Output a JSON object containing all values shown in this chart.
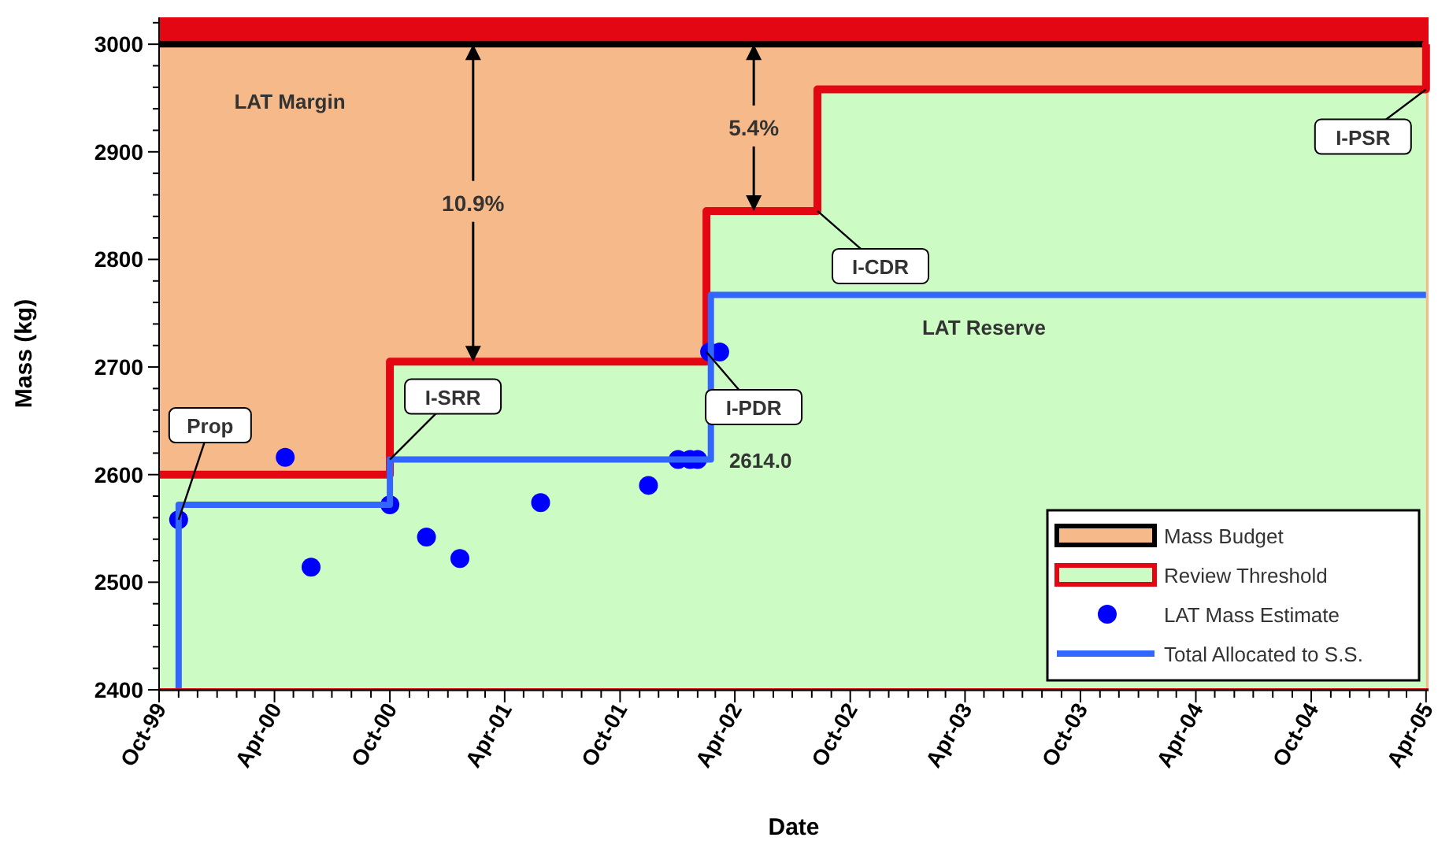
{
  "chart_data": {
    "type": "step",
    "xlabel": "Date",
    "ylabel": "Mass (kg)",
    "xlim": [
      "1999-10-01",
      "2005-04-05"
    ],
    "ylim": [
      2400,
      3025
    ],
    "yticks": [
      2400,
      {
        "value": 2420,
        "label": null
      },
      {
        "value": 2440,
        "label": null
      },
      {
        "value": 2460,
        "label": null
      },
      {
        "value": 2480,
        "label": null
      },
      2500,
      {
        "value": 2520,
        "label": null
      },
      {
        "value": 2540,
        "label": null
      },
      {
        "value": 2560,
        "label": null
      },
      {
        "value": 2580,
        "label": null
      },
      2600,
      {
        "value": 2620,
        "label": null
      },
      {
        "value": 2640,
        "label": null
      },
      {
        "value": 2660,
        "label": null
      },
      {
        "value": 2680,
        "label": null
      },
      2700,
      {
        "value": 2720,
        "label": null
      },
      {
        "value": 2740,
        "label": null
      },
      {
        "value": 2760,
        "label": null
      },
      {
        "value": 2780,
        "label": null
      },
      2800,
      {
        "value": 2820,
        "label": null
      },
      {
        "value": 2840,
        "label": null
      },
      {
        "value": 2860,
        "label": null
      },
      {
        "value": 2880,
        "label": null
      },
      2900,
      {
        "value": 2920,
        "label": null
      },
      {
        "value": 2940,
        "label": null
      },
      {
        "value": 2960,
        "label": null
      },
      {
        "value": 2980,
        "label": null
      },
      3000,
      {
        "value": 3020,
        "label": null
      }
    ],
    "xticks": [
      {
        "value": "1999-10-01",
        "label": "Oct-99"
      },
      {
        "value": "2000-04-01",
        "label": "Apr-00"
      },
      {
        "value": "2000-10-01",
        "label": "Oct-00"
      },
      {
        "value": "2001-04-01",
        "label": "Apr-01"
      },
      {
        "value": "2001-10-01",
        "label": "Oct-01"
      },
      {
        "value": "2002-04-01",
        "label": "Apr-02"
      },
      {
        "value": "2002-10-01",
        "label": "Oct-02"
      },
      {
        "value": "2003-04-01",
        "label": "Apr-03"
      },
      {
        "value": "2003-10-01",
        "label": "Oct-03"
      },
      {
        "value": "2004-04-01",
        "label": "Apr-04"
      },
      {
        "value": "2004-10-01",
        "label": "Oct-04"
      },
      {
        "value": "2005-04-01",
        "label": "Apr-05"
      },
      {
        "value": "1999-11-01",
        "label": null
      },
      {
        "value": "1999-12-01",
        "label": null
      },
      {
        "value": "2000-01-01",
        "label": null
      },
      {
        "value": "2000-02-01",
        "label": null
      },
      {
        "value": "2000-03-01",
        "label": null
      },
      {
        "value": "2000-05-01",
        "label": null
      },
      {
        "value": "2000-06-01",
        "label": null
      },
      {
        "value": "2000-07-01",
        "label": null
      },
      {
        "value": "2000-08-01",
        "label": null
      },
      {
        "value": "2000-09-01",
        "label": null
      },
      {
        "value": "2000-11-01",
        "label": null
      },
      {
        "value": "2000-12-01",
        "label": null
      },
      {
        "value": "2001-01-01",
        "label": null
      },
      {
        "value": "2001-02-01",
        "label": null
      },
      {
        "value": "2001-03-01",
        "label": null
      },
      {
        "value": "2001-05-01",
        "label": null
      },
      {
        "value": "2001-06-01",
        "label": null
      },
      {
        "value": "2001-07-01",
        "label": null
      },
      {
        "value": "2001-08-01",
        "label": null
      },
      {
        "value": "2001-09-01",
        "label": null
      },
      {
        "value": "2001-11-01",
        "label": null
      },
      {
        "value": "2001-12-01",
        "label": null
      },
      {
        "value": "2002-01-01",
        "label": null
      },
      {
        "value": "2002-02-01",
        "label": null
      },
      {
        "value": "2002-03-01",
        "label": null
      },
      {
        "value": "2002-05-01",
        "label": null
      },
      {
        "value": "2002-06-01",
        "label": null
      },
      {
        "value": "2002-07-01",
        "label": null
      },
      {
        "value": "2002-08-01",
        "label": null
      },
      {
        "value": "2002-09-01",
        "label": null
      },
      {
        "value": "2002-11-01",
        "label": null
      },
      {
        "value": "2002-12-01",
        "label": null
      },
      {
        "value": "2003-01-01",
        "label": null
      },
      {
        "value": "2003-02-01",
        "label": null
      },
      {
        "value": "2003-03-01",
        "label": null
      },
      {
        "value": "2003-05-01",
        "label": null
      },
      {
        "value": "2003-06-01",
        "label": null
      },
      {
        "value": "2003-07-01",
        "label": null
      },
      {
        "value": "2003-08-01",
        "label": null
      },
      {
        "value": "2003-09-01",
        "label": null
      },
      {
        "value": "2003-11-01",
        "label": null
      },
      {
        "value": "2003-12-01",
        "label": null
      },
      {
        "value": "2004-01-01",
        "label": null
      },
      {
        "value": "2004-02-01",
        "label": null
      },
      {
        "value": "2004-03-01",
        "label": null
      },
      {
        "value": "2004-05-01",
        "label": null
      },
      {
        "value": "2004-06-01",
        "label": null
      },
      {
        "value": "2004-07-01",
        "label": null
      },
      {
        "value": "2004-08-01",
        "label": null
      },
      {
        "value": "2004-09-01",
        "label": null
      },
      {
        "value": "2004-11-01",
        "label": null
      },
      {
        "value": "2004-12-01",
        "label": null
      },
      {
        "value": "2005-01-01",
        "label": null
      },
      {
        "value": "2005-02-01",
        "label": null
      },
      {
        "value": "2005-03-01",
        "label": null
      }
    ],
    "series": [
      {
        "type": "area",
        "color": "#ccfcc4",
        "x": [
          "1999-10-01",
          "2000-10-01",
          "2000-10-01",
          "2002-02-15",
          "2002-02-15",
          "2002-08-10",
          "2002-08-10",
          "2005-04-01"
        ],
        "values": [
          2600,
          2600,
          2705,
          2705,
          2845,
          2845,
          2958,
          2958
        ]
      },
      {
        "name": "Mass Budget",
        "color": "#000000",
        "x": [
          "1999-10-01",
          "2005-04-05"
        ],
        "values": [
          3000,
          3000
        ]
      },
      {
        "name": "Review Threshold",
        "color": "#e30613",
        "x": [
          "1999-10-01",
          "2000-10-01",
          "2002-02-15",
          "2002-08-10",
          "2005-04-01",
          "2005-04-05"
        ],
        "values": [
          2600,
          2705,
          2845,
          2958,
          3000,
          3000
        ]
      },
      {
        "name": "LAT Mass Estimate",
        "type": "scatter",
        "color": "#0000ff",
        "marker": "circle",
        "x": [
          "1999-11-01",
          "2000-04-18",
          "2000-05-29",
          "2000-10-01",
          "2000-11-28",
          "2001-01-20",
          "2001-05-28",
          "2001-11-15",
          "2002-01-01",
          "2002-01-20",
          "2002-02-01",
          "2002-02-20",
          "2002-03-08"
        ],
        "values": [
          2558,
          2616,
          2514,
          2572,
          2542,
          2522,
          2574,
          2590,
          2614,
          2614,
          2614,
          2714,
          2714
        ]
      },
      {
        "name": "Total Allocated to S.S.",
        "color": "#3366ff",
        "x": [
          "1999-11-01",
          "1999-11-01",
          "2000-10-01",
          "2002-02-22",
          "2005-04-01"
        ],
        "values": [
          2400,
          2572,
          2614,
          2767,
          2767
        ]
      }
    ],
    "bands": [
      {
        "axis": "y",
        "from": 2400,
        "to": 3000,
        "color": "#f5b98a"
      },
      {
        "axis": "y",
        "from": 3000,
        "to": 3025,
        "color": "#e30613"
      }
    ],
    "annotations": [
      {
        "text": "Prop",
        "x": "1999-11-01",
        "y": 2558
      },
      {
        "text": "I-SRR",
        "x": "2000-10-01",
        "y": 2614
      },
      {
        "text": "I-PDR",
        "x": "2002-02-15",
        "y": 2714
      },
      {
        "text": "I-CDR",
        "x": "2002-08-10",
        "y": 2845
      },
      {
        "text": "I-PSR",
        "x": "2005-04-01",
        "y": 2958
      },
      {
        "text": "2614.0",
        "x": "2002-02-01",
        "y": 2614
      },
      "10.9%",
      "5.4%",
      "LAT Margin",
      "LAT Reserve"
    ],
    "legend": "bottom right",
    "grid": false
  }
}
